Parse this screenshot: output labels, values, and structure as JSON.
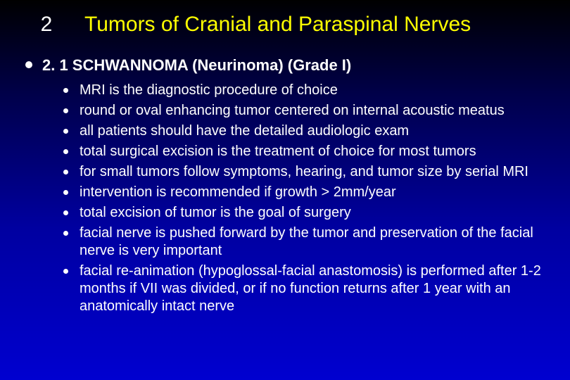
{
  "title_number": "2",
  "title_text": "Tumors of Cranial and Paraspinal Nerves",
  "section_heading": "2. 1  SCHWANNOMA (Neurinoma) (Grade I)",
  "bullets": [
    "MRI is the diagnostic procedure of choice",
    "round or oval enhancing tumor centered on internal acoustic meatus",
    "all patients should have the detailed audiologic exam",
    "total surgical excision is the treatment of choice for most tumors",
    "for small tumors follow symptoms, hearing, and tumor size by serial MRI",
    "intervention is recommended if growth > 2mm/year",
    "total excision of tumor is the goal of surgery",
    "facial nerve is pushed forward by the tumor and preservation of the facial nerve is very important",
    "facial re-animation (hypoglossal-facial anastomosis) is performed after 1-2 months if VII was divided, or if no function returns after 1 year with an anatomically intact nerve"
  ],
  "colors": {
    "title_color": "#ffff00",
    "text_color": "#ffffff",
    "bg_top": "#000000",
    "bg_bottom": "#0000d0"
  },
  "fonts": {
    "title_size_pt": 30,
    "heading_size_pt": 22,
    "body_size_pt": 20,
    "family": "Arial"
  }
}
